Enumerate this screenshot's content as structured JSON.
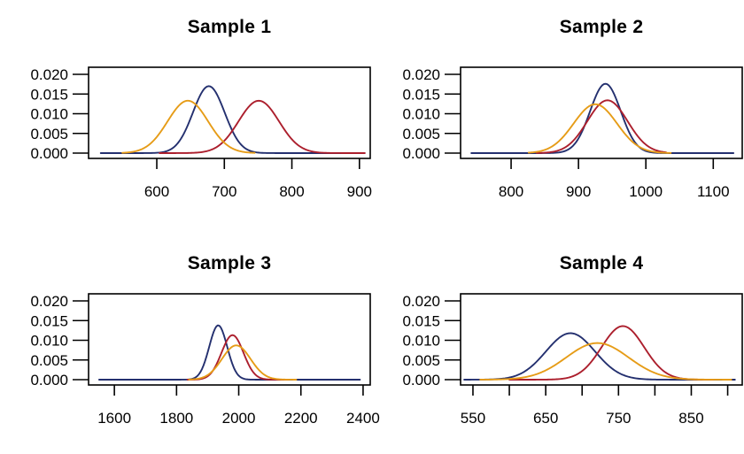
{
  "figure": {
    "background": "#ffffff",
    "axis_color": "#000000",
    "text_color": "#000000"
  },
  "series_colors": {
    "blue": "#24306F",
    "red": "#AC1F2D",
    "orange": "#E69C17"
  },
  "chart_data": [
    {
      "type": "line",
      "title": "Sample 1",
      "xlim": [
        499,
        916
      ],
      "ylim": [
        0,
        0.0214
      ],
      "grid": false,
      "legend": "none",
      "xticks": [
        600,
        700,
        800,
        900
      ],
      "xtick_labels": [
        "600",
        "700",
        "800",
        "900"
      ],
      "yticks": [
        0,
        0.005,
        0.01,
        0.015,
        0.02
      ],
      "ytick_labels": [
        "0.000",
        "0.005",
        "0.010",
        "0.015",
        "0.020"
      ],
      "series": [
        {
          "name": "blue-density",
          "color": "#24306F",
          "mean": 677,
          "sd": 23.5,
          "peak": 0.017,
          "range": [
            517,
            905
          ]
        },
        {
          "name": "red-density",
          "color": "#AC1F2D",
          "mean": 751,
          "sd": 30.0,
          "peak": 0.0133,
          "range": [
            604,
            908
          ]
        },
        {
          "name": "orange-density",
          "color": "#E69C17",
          "mean": 646,
          "sd": 30.0,
          "peak": 0.0133,
          "range": [
            549,
            745
          ]
        }
      ]
    },
    {
      "type": "line",
      "title": "Sample 2",
      "xlim": [
        725,
        1143
      ],
      "ylim": [
        0,
        0.0214
      ],
      "grid": false,
      "legend": "none",
      "xticks": [
        800,
        900,
        1000,
        1100
      ],
      "xtick_labels": [
        "800",
        "900",
        "1000",
        "1100"
      ],
      "yticks": [
        0,
        0.005,
        0.01,
        0.015,
        0.02
      ],
      "ytick_labels": [
        "0.000",
        "0.005",
        "0.010",
        "0.015",
        "0.020"
      ],
      "series": [
        {
          "name": "blue-density",
          "color": "#24306F",
          "mean": 940,
          "sd": 22.7,
          "peak": 0.0176,
          "range": [
            741,
            1130
          ]
        },
        {
          "name": "red-density",
          "color": "#AC1F2D",
          "mean": 943,
          "sd": 29.8,
          "peak": 0.0134,
          "range": [
            838,
            1030
          ]
        },
        {
          "name": "orange-density",
          "color": "#E69C17",
          "mean": 925,
          "sd": 32.2,
          "peak": 0.0124,
          "range": [
            826,
            1037
          ]
        }
      ]
    },
    {
      "type": "line",
      "title": "Sample 3",
      "xlim": [
        1517,
        2423
      ],
      "ylim": [
        0,
        0.0214
      ],
      "grid": false,
      "legend": "none",
      "xticks": [
        1600,
        1800,
        2000,
        2200,
        2400
      ],
      "xtick_labels": [
        "1600",
        "1800",
        "2000",
        "2200",
        "2400"
      ],
      "yticks": [
        0,
        0.005,
        0.01,
        0.015,
        0.02
      ],
      "ytick_labels": [
        "0.000",
        "0.005",
        "0.010",
        "0.015",
        "0.020"
      ],
      "series": [
        {
          "name": "blue-density",
          "color": "#24306F",
          "mean": 1934,
          "sd": 28.9,
          "peak": 0.0138,
          "range": [
            1551,
            2390
          ]
        },
        {
          "name": "red-density",
          "color": "#AC1F2D",
          "mean": 1980,
          "sd": 35.3,
          "peak": 0.0113,
          "range": [
            1835,
            2160
          ]
        },
        {
          "name": "orange-density",
          "color": "#E69C17",
          "mean": 1992,
          "sd": 45.9,
          "peak": 0.0087,
          "range": [
            1840,
            2185
          ]
        }
      ]
    },
    {
      "type": "line",
      "title": "Sample 4",
      "xlim": [
        533,
        920
      ],
      "ylim": [
        0,
        0.0214
      ],
      "grid": false,
      "legend": "none",
      "xticks": [
        550,
        600,
        650,
        700,
        750,
        800,
        850,
        900
      ],
      "xtick_labels": [
        "550",
        "",
        "650",
        "",
        "750",
        "",
        "850",
        ""
      ],
      "yticks": [
        0,
        0.005,
        0.01,
        0.015,
        0.02
      ],
      "ytick_labels": [
        "0.000",
        "0.005",
        "0.010",
        "0.015",
        "0.020"
      ],
      "series": [
        {
          "name": "blue-density",
          "color": "#24306F",
          "mean": 684,
          "sd": 33.8,
          "peak": 0.0118,
          "range": [
            538,
            910
          ]
        },
        {
          "name": "red-density",
          "color": "#AC1F2D",
          "mean": 756,
          "sd": 29.3,
          "peak": 0.0136,
          "range": [
            600,
            880
          ]
        },
        {
          "name": "orange-density",
          "color": "#E69C17",
          "mean": 721,
          "sd": 42.9,
          "peak": 0.0093,
          "range": [
            560,
            905
          ]
        }
      ]
    }
  ]
}
